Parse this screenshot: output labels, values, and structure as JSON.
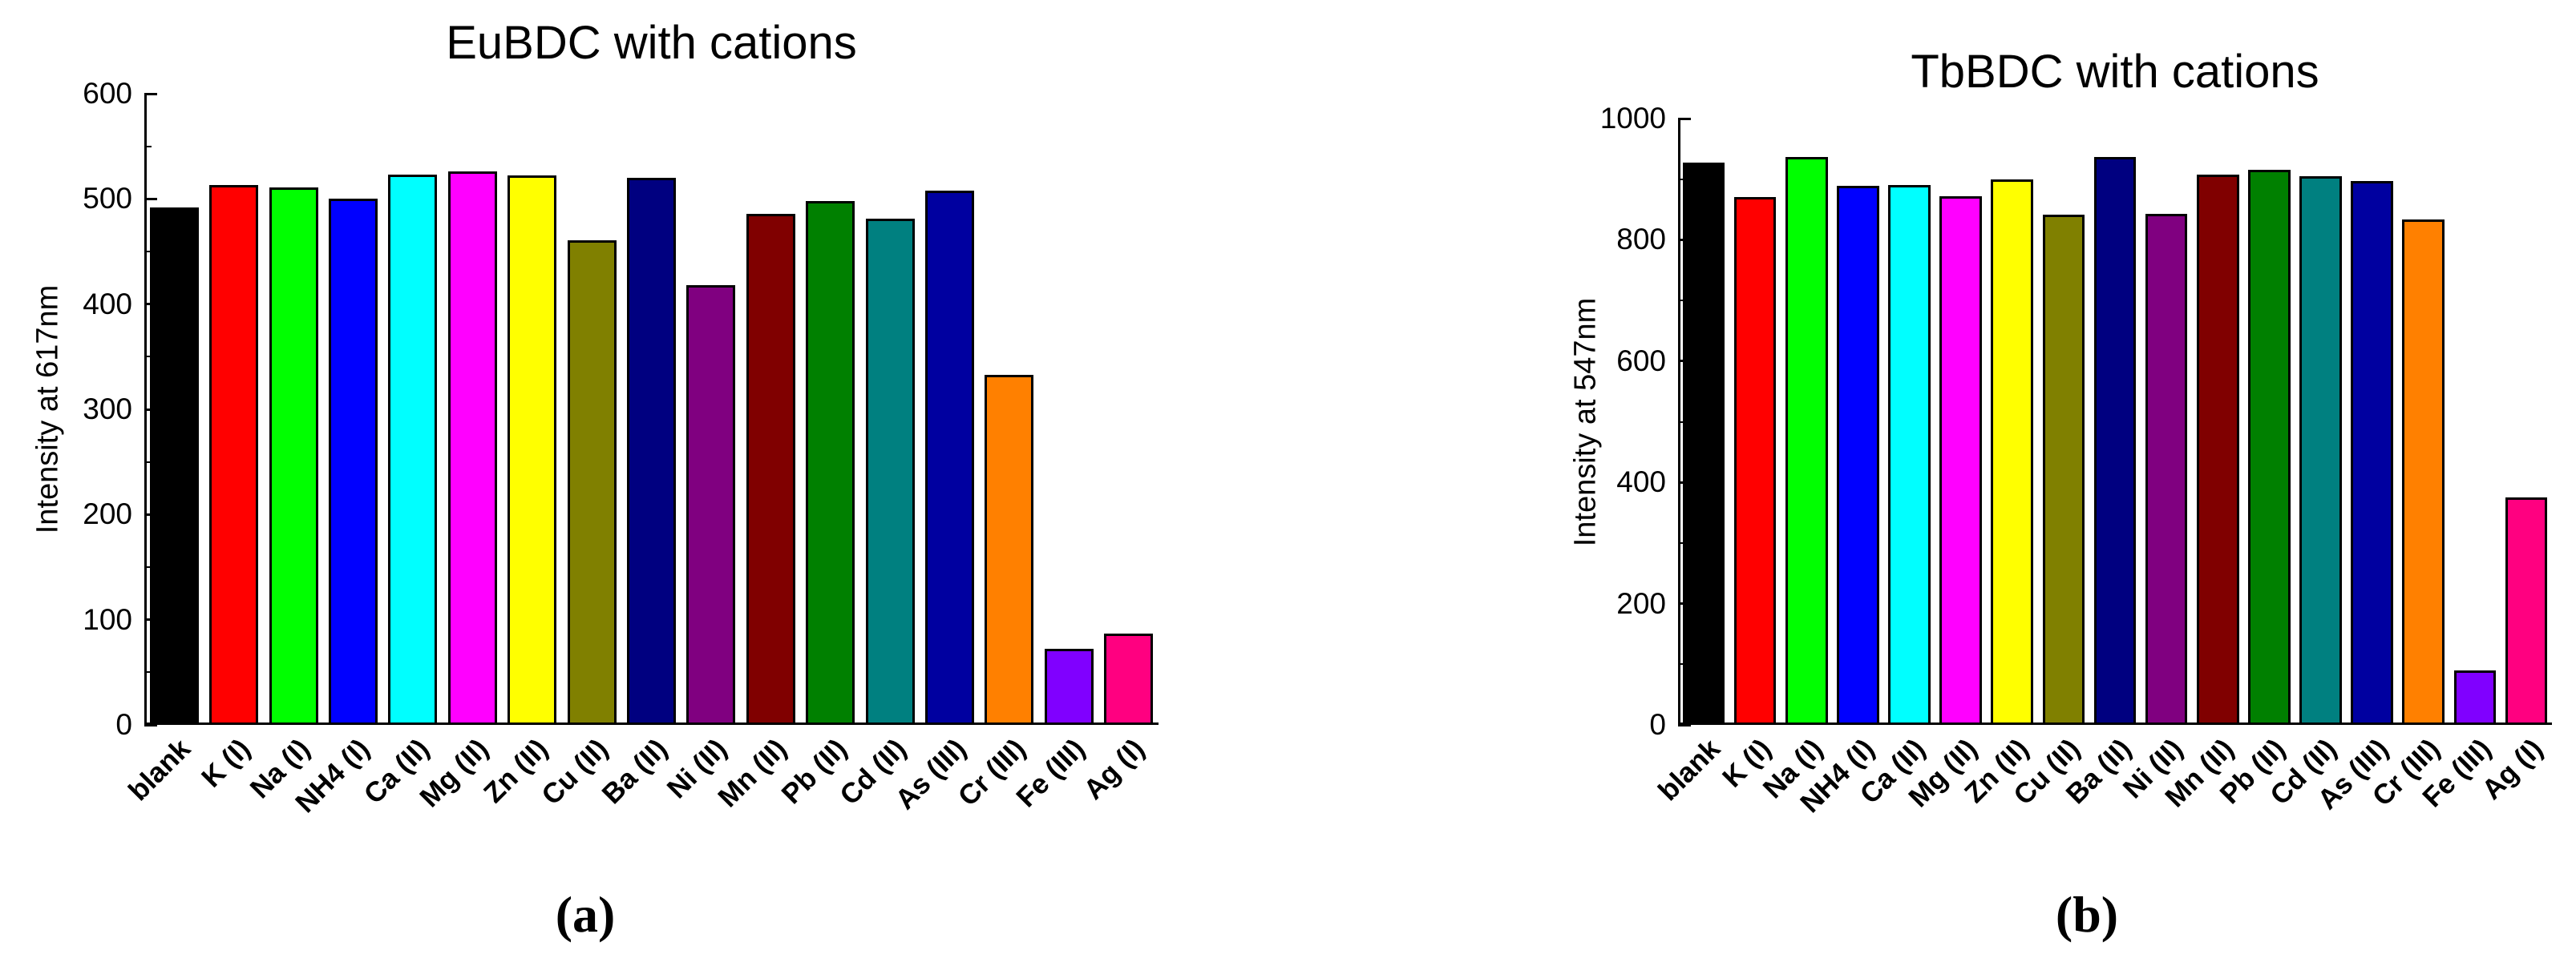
{
  "colors": {
    "background": "#ffffff",
    "axis": "#000000",
    "bar_outline": "#000000",
    "text": "#000000"
  },
  "chart_data": [
    {
      "type": "bar",
      "title": "EuBDC with cations",
      "xlabel": "",
      "ylabel": "Intensity at 617nm",
      "caption": "(a)",
      "ylim": [
        0,
        600
      ],
      "yticks": [
        0,
        100,
        200,
        300,
        400,
        500,
        600
      ],
      "grid": false,
      "legend": "none",
      "categories": [
        "blank",
        "K (I)",
        "Na (I)",
        "NH4 (I)",
        "Ca (II)",
        "Mg (II)",
        "Zn (II)",
        "Cu (II)",
        "Ba (II)",
        "Ni (II)",
        "Mn (II)",
        "Pb (II)",
        "Cd (II)",
        "As (III)",
        "Cr (III)",
        "Fe (III)",
        "Ag (I)"
      ],
      "values": [
        492,
        513,
        511,
        500,
        523,
        526,
        522,
        461,
        520,
        418,
        486,
        498,
        481,
        508,
        333,
        72,
        87
      ],
      "bar_colors": [
        "#000000",
        "#FF0000",
        "#00FF00",
        "#0000FF",
        "#00FFFF",
        "#FF00FF",
        "#FFFF00",
        "#808000",
        "#000080",
        "#800080",
        "#800000",
        "#008000",
        "#008080",
        "#0000A0",
        "#FF8000",
        "#8000FF",
        "#FF0080"
      ]
    },
    {
      "type": "bar",
      "title": "TbBDC with cations",
      "xlabel": "",
      "ylabel": "Intensity at 547nm",
      "caption": "(b)",
      "ylim": [
        0,
        1000
      ],
      "yticks": [
        0,
        200,
        400,
        600,
        800,
        1000
      ],
      "grid": false,
      "legend": "none",
      "categories": [
        "blank",
        "K (I)",
        "Na (I)",
        "NH4 (I)",
        "Ca (II)",
        "Mg (II)",
        "Zn (II)",
        "Cu (II)",
        "Ba (II)",
        "Ni (II)",
        "Mn (II)",
        "Pb (II)",
        "Cd (II)",
        "As (III)",
        "Cr (III)",
        "Fe (III)",
        "Ag (I)"
      ],
      "values": [
        927,
        870,
        937,
        889,
        891,
        872,
        900,
        842,
        937,
        843,
        908,
        916,
        905,
        897,
        834,
        90,
        375
      ],
      "bar_colors": [
        "#000000",
        "#FF0000",
        "#00FF00",
        "#0000FF",
        "#00FFFF",
        "#FF00FF",
        "#FFFF00",
        "#808000",
        "#000080",
        "#800080",
        "#800000",
        "#008000",
        "#008080",
        "#0000A0",
        "#FF8000",
        "#8000FF",
        "#FF0080"
      ]
    }
  ]
}
